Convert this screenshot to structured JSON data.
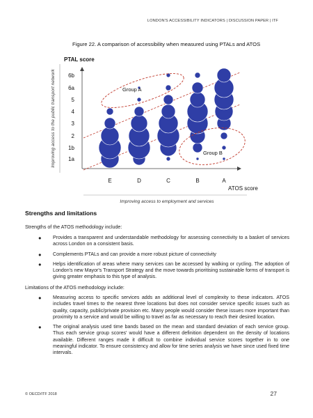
{
  "header": {
    "running_title": "LONDON'S ACCESSIBILITY INDICATORS | DISCUSSION PAPER | ITF"
  },
  "figure": {
    "caption": "Figure 22.  A comparison of accessibility when measured using PTALs and ATOS"
  },
  "chart_data": {
    "type": "bubble",
    "y_axis_title": "PTAL score",
    "y_axis_side_label": "Improving access to the public transport network",
    "x_axis_title": "ATOS score",
    "x_axis_side_label": "Improving access to employment and services",
    "y_categories": [
      "1a",
      "1b",
      "2",
      "3",
      "4",
      "5",
      "6a",
      "6b"
    ],
    "x_categories": [
      "E",
      "D",
      "C",
      "B",
      "A"
    ],
    "bubble_color": "#2f3ea6",
    "annotation_color": "#c0392b",
    "bubbles": [
      {
        "x": "E",
        "y": "1a",
        "r": 13
      },
      {
        "x": "E",
        "y": "1b",
        "r": 16
      },
      {
        "x": "E",
        "y": "2",
        "r": 13
      },
      {
        "x": "E",
        "y": "3",
        "r": 8
      },
      {
        "x": "E",
        "y": "4",
        "r": 5
      },
      {
        "x": "D",
        "y": "1a",
        "r": 9
      },
      {
        "x": "D",
        "y": "1b",
        "r": 16
      },
      {
        "x": "D",
        "y": "2",
        "r": 15
      },
      {
        "x": "D",
        "y": "3",
        "r": 12
      },
      {
        "x": "D",
        "y": "4",
        "r": 7
      },
      {
        "x": "D",
        "y": "5",
        "r": 3
      },
      {
        "x": "D",
        "y": "6a",
        "r": 2
      },
      {
        "x": "C",
        "y": "1a",
        "r": 3
      },
      {
        "x": "C",
        "y": "1b",
        "r": 12
      },
      {
        "x": "C",
        "y": "2",
        "r": 16
      },
      {
        "x": "C",
        "y": "3",
        "r": 14
      },
      {
        "x": "C",
        "y": "4",
        "r": 10
      },
      {
        "x": "C",
        "y": "5",
        "r": 7
      },
      {
        "x": "C",
        "y": "6a",
        "r": 4
      },
      {
        "x": "C",
        "y": "6b",
        "r": 3
      },
      {
        "x": "B",
        "y": "1a",
        "r": 2
      },
      {
        "x": "B",
        "y": "1b",
        "r": 7
      },
      {
        "x": "B",
        "y": "2",
        "r": 11
      },
      {
        "x": "B",
        "y": "3",
        "r": 15
      },
      {
        "x": "B",
        "y": "4",
        "r": 15
      },
      {
        "x": "B",
        "y": "5",
        "r": 11
      },
      {
        "x": "B",
        "y": "6a",
        "r": 8
      },
      {
        "x": "B",
        "y": "6b",
        "r": 4
      },
      {
        "x": "A",
        "y": "1a",
        "r": 2
      },
      {
        "x": "A",
        "y": "1b",
        "r": 3
      },
      {
        "x": "A",
        "y": "2",
        "r": 5
      },
      {
        "x": "A",
        "y": "3",
        "r": 10
      },
      {
        "x": "A",
        "y": "4",
        "r": 13
      },
      {
        "x": "A",
        "y": "5",
        "r": 14
      },
      {
        "x": "A",
        "y": "6a",
        "r": 14
      },
      {
        "x": "A",
        "y": "6b",
        "r": 10
      }
    ],
    "annotations": [
      {
        "label": "Group A",
        "shape": "dashed-ellipse",
        "x_range": [
          "E",
          "C"
        ],
        "y_range": [
          "5",
          "6b"
        ]
      },
      {
        "label": "Group B",
        "shape": "dashed-ellipse",
        "x_range": [
          "C",
          "A"
        ],
        "y_range": [
          "1a",
          "3"
        ]
      }
    ],
    "guide_lines": "two dashed diagonal lines bounding the main trend"
  },
  "section": {
    "heading": "Strengths and limitations",
    "strengths_intro": "Strengths of the ATOS methodology include:",
    "strengths": [
      "Provides a transparent and understandable methodology for assessing connectivity to a basket of services across London on a consistent basis.",
      "Complements PTALs and can provide a more robust picture of connectivity",
      "Helps identification of areas where many services can be accessed by walking or cycling. The adoption of London's new Mayor's Transport Strategy and the move towards prioritising sustainable forms of transport is giving greater emphasis to this type of analysis."
    ],
    "limitations_intro": "Limitations of the ATOS methodology include:",
    "limitations": [
      "Measuring access to specific services adds an additional level of complexity to these indicators. ATOS includes travel times to the nearest three locations but does not consider service specific issues such as quality, capacity, public/private provision etc. Many people would consider these issues more important than proximity to a service and would be willing to travel as far as necessary to reach their desired location.",
      "The original analysis used time bands based on the mean and standard deviation of each service group. Thus each service group scores' would have a different definition dependent on the density of locations available. Different ranges made it difficult to combine individual service scores together in to one meaningful indicator. To ensure consistency and allow for time series analysis we have since used fixed time intervals."
    ],
    "bullet_glyph": "●"
  },
  "footer": {
    "copyright": "© OECD/ITF 2018",
    "page_number": "27"
  }
}
